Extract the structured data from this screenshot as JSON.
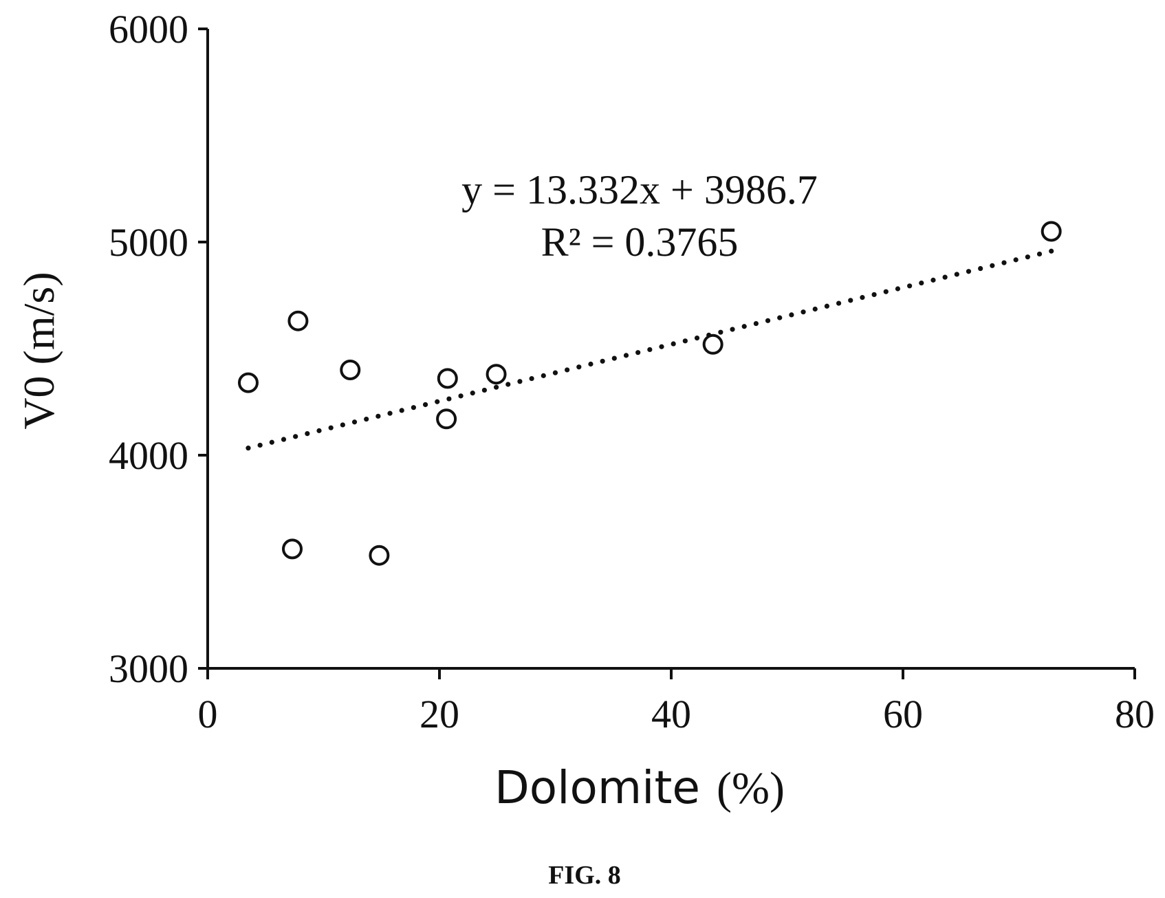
{
  "chart_data": {
    "type": "scatter",
    "xlabel": "Dolomite",
    "xlabel_unit": "(%)",
    "ylabel": "V0 (m/s)",
    "xlim": [
      0,
      80
    ],
    "ylim": [
      3000,
      6000
    ],
    "xticks": [
      "0",
      "20",
      "40",
      "60",
      "80"
    ],
    "yticks": [
      "3000",
      "4000",
      "5000",
      "6000"
    ],
    "grid": false,
    "legend": "none",
    "marker": "open circle",
    "series": [
      {
        "x": [
          3.5,
          7.3,
          7.8,
          12.3,
          14.8,
          20.6,
          20.7,
          24.9,
          43.6,
          72.8
        ],
        "y": [
          4340,
          3560,
          4630,
          4400,
          3530,
          4170,
          4360,
          4380,
          4520,
          5050
        ]
      }
    ],
    "trendline": {
      "style": "dotted",
      "slope": 13.332,
      "intercept": 3986.7,
      "x_range": [
        3.5,
        72.8
      ]
    },
    "annotations": {
      "equation": "y = 13.332x + 3986.7",
      "r_squared": "R² = 0.3765"
    },
    "caption": "FIG. 8",
    "colors": {
      "ink": "#111111",
      "background": "#ffffff"
    }
  }
}
